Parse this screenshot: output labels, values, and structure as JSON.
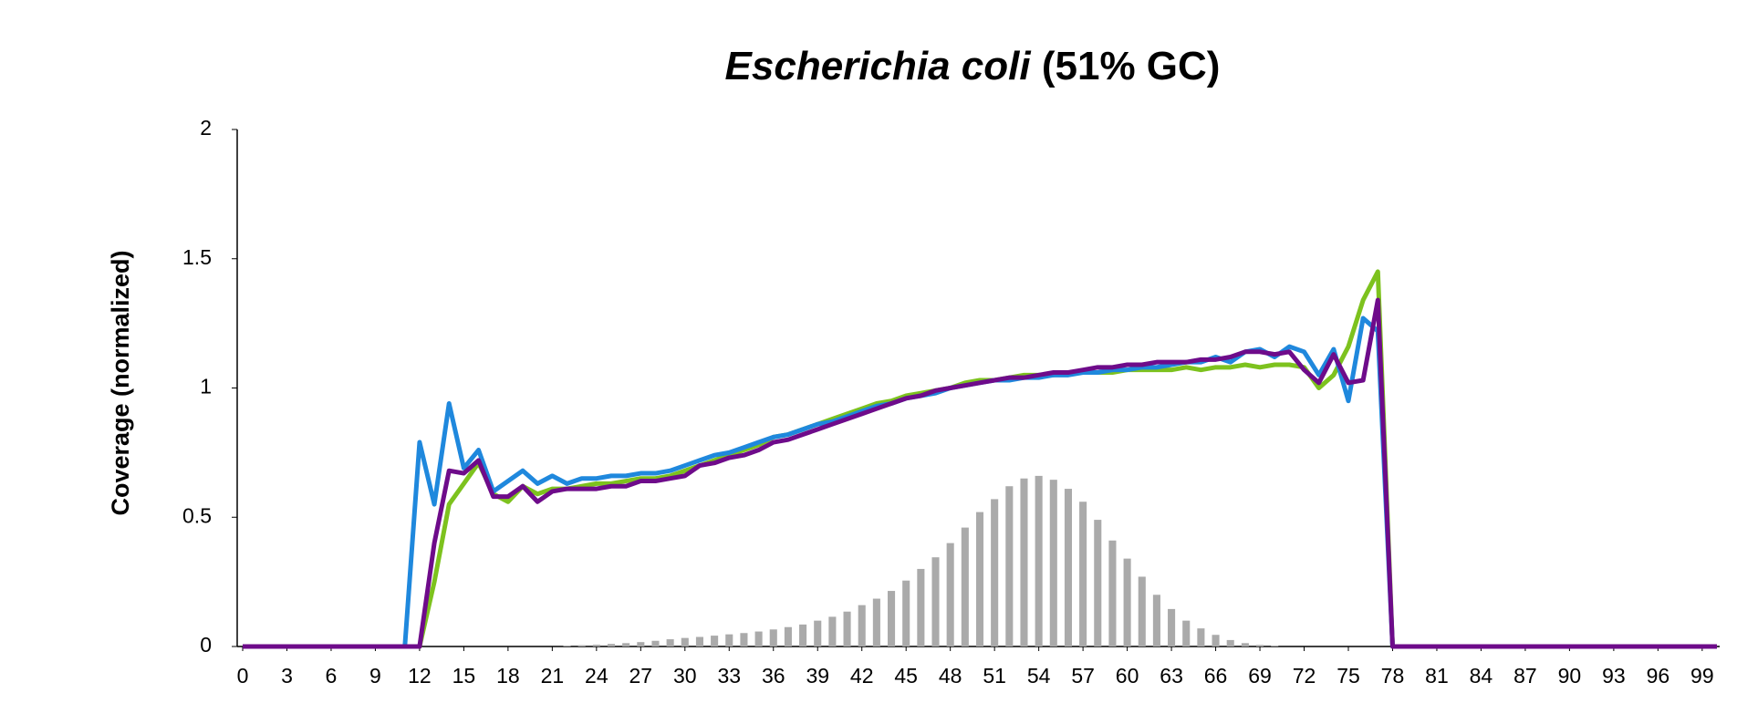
{
  "chart_data": {
    "type": "line",
    "title_italic": "Escherichia coli",
    "title_rest": "(51% GC)",
    "ylabel": "Coverage (normalized)",
    "x": [
      0,
      1,
      2,
      3,
      4,
      5,
      6,
      7,
      8,
      9,
      10,
      11,
      12,
      13,
      14,
      15,
      16,
      17,
      18,
      19,
      20,
      21,
      22,
      23,
      24,
      25,
      26,
      27,
      28,
      29,
      30,
      31,
      32,
      33,
      34,
      35,
      36,
      37,
      38,
      39,
      40,
      41,
      42,
      43,
      44,
      45,
      46,
      47,
      48,
      49,
      50,
      51,
      52,
      53,
      54,
      55,
      56,
      57,
      58,
      59,
      60,
      61,
      62,
      63,
      64,
      65,
      66,
      67,
      68,
      69,
      70,
      71,
      72,
      73,
      74,
      75,
      76,
      77,
      78,
      79,
      80,
      81,
      82,
      83,
      84,
      85,
      86,
      87,
      88,
      89,
      90,
      91,
      92,
      93,
      94,
      95,
      96,
      97,
      98,
      99,
      100
    ],
    "xlim": [
      0,
      100
    ],
    "xticks": [
      0,
      3,
      6,
      9,
      12,
      15,
      18,
      21,
      24,
      27,
      30,
      33,
      36,
      39,
      42,
      45,
      48,
      51,
      54,
      57,
      60,
      63,
      66,
      69,
      72,
      75,
      78,
      81,
      84,
      87,
      90,
      93,
      96,
      99
    ],
    "ylim": [
      0,
      2
    ],
    "yticks": [
      0,
      0.5,
      1,
      1.5,
      2
    ],
    "bars": {
      "color": "#aaaaaa",
      "x": [
        22,
        23,
        24,
        25,
        26,
        27,
        28,
        29,
        30,
        31,
        32,
        33,
        34,
        35,
        36,
        37,
        38,
        39,
        40,
        41,
        42,
        43,
        44,
        45,
        46,
        47,
        48,
        49,
        50,
        51,
        52,
        53,
        54,
        55,
        56,
        57,
        58,
        59,
        60,
        61,
        62,
        63,
        64,
        65,
        66,
        67,
        68,
        69,
        70
      ],
      "values": [
        0.003,
        0.005,
        0.007,
        0.01,
        0.013,
        0.017,
        0.022,
        0.028,
        0.033,
        0.037,
        0.042,
        0.047,
        0.052,
        0.058,
        0.066,
        0.075,
        0.085,
        0.1,
        0.115,
        0.135,
        0.16,
        0.185,
        0.215,
        0.255,
        0.3,
        0.345,
        0.4,
        0.46,
        0.52,
        0.57,
        0.62,
        0.65,
        0.66,
        0.645,
        0.61,
        0.56,
        0.49,
        0.41,
        0.34,
        0.27,
        0.2,
        0.145,
        0.1,
        0.07,
        0.045,
        0.025,
        0.013,
        0.006,
        0.003
      ]
    },
    "series": [
      {
        "color": "#7dc21e",
        "values": [
          0,
          0,
          0,
          0,
          0,
          0,
          0,
          0,
          0,
          0,
          0,
          0,
          0,
          0.25,
          0.55,
          0.63,
          0.71,
          0.59,
          0.56,
          0.62,
          0.59,
          0.61,
          0.61,
          0.62,
          0.63,
          0.63,
          0.64,
          0.65,
          0.65,
          0.66,
          0.68,
          0.7,
          0.72,
          0.74,
          0.76,
          0.78,
          0.81,
          0.82,
          0.84,
          0.86,
          0.88,
          0.9,
          0.92,
          0.94,
          0.95,
          0.97,
          0.98,
          0.99,
          1.0,
          1.02,
          1.03,
          1.03,
          1.04,
          1.05,
          1.05,
          1.05,
          1.06,
          1.06,
          1.06,
          1.06,
          1.07,
          1.07,
          1.07,
          1.07,
          1.08,
          1.07,
          1.08,
          1.08,
          1.09,
          1.08,
          1.09,
          1.09,
          1.08,
          1.0,
          1.05,
          1.16,
          1.34,
          1.45,
          0,
          0,
          0,
          0,
          0,
          0,
          0,
          0,
          0,
          0,
          0,
          0,
          0,
          0,
          0,
          0,
          0,
          0,
          0,
          0,
          0,
          0,
          0
        ]
      },
      {
        "color": "#1f88dd",
        "values": [
          0,
          0,
          0,
          0,
          0,
          0,
          0,
          0,
          0,
          0,
          0,
          0,
          0.79,
          0.55,
          0.94,
          0.69,
          0.76,
          0.6,
          0.64,
          0.68,
          0.63,
          0.66,
          0.63,
          0.65,
          0.65,
          0.66,
          0.66,
          0.67,
          0.67,
          0.68,
          0.7,
          0.72,
          0.74,
          0.75,
          0.77,
          0.79,
          0.81,
          0.82,
          0.84,
          0.86,
          0.87,
          0.89,
          0.91,
          0.93,
          0.94,
          0.96,
          0.97,
          0.98,
          1.0,
          1.01,
          1.02,
          1.03,
          1.03,
          1.04,
          1.04,
          1.05,
          1.05,
          1.06,
          1.06,
          1.07,
          1.07,
          1.08,
          1.08,
          1.09,
          1.1,
          1.1,
          1.12,
          1.1,
          1.14,
          1.15,
          1.12,
          1.16,
          1.14,
          1.05,
          1.15,
          0.95,
          1.27,
          1.22,
          0,
          0,
          0,
          0,
          0,
          0,
          0,
          0,
          0,
          0,
          0,
          0,
          0,
          0,
          0,
          0,
          0,
          0,
          0,
          0,
          0,
          0,
          0
        ]
      },
      {
        "color": "#6e0b8a",
        "values": [
          0,
          0,
          0,
          0,
          0,
          0,
          0,
          0,
          0,
          0,
          0,
          0,
          0,
          0.4,
          0.68,
          0.67,
          0.72,
          0.58,
          0.58,
          0.62,
          0.56,
          0.6,
          0.61,
          0.61,
          0.61,
          0.62,
          0.62,
          0.64,
          0.64,
          0.65,
          0.66,
          0.7,
          0.71,
          0.73,
          0.74,
          0.76,
          0.79,
          0.8,
          0.82,
          0.84,
          0.86,
          0.88,
          0.9,
          0.92,
          0.94,
          0.96,
          0.97,
          0.99,
          1.0,
          1.01,
          1.02,
          1.03,
          1.04,
          1.04,
          1.05,
          1.06,
          1.06,
          1.07,
          1.08,
          1.08,
          1.09,
          1.09,
          1.1,
          1.1,
          1.1,
          1.11,
          1.11,
          1.12,
          1.14,
          1.14,
          1.13,
          1.14,
          1.07,
          1.02,
          1.13,
          1.02,
          1.03,
          1.34,
          0,
          0,
          0,
          0,
          0,
          0,
          0,
          0,
          0,
          0,
          0,
          0,
          0,
          0,
          0,
          0,
          0,
          0,
          0,
          0,
          0,
          0,
          0
        ]
      }
    ]
  }
}
